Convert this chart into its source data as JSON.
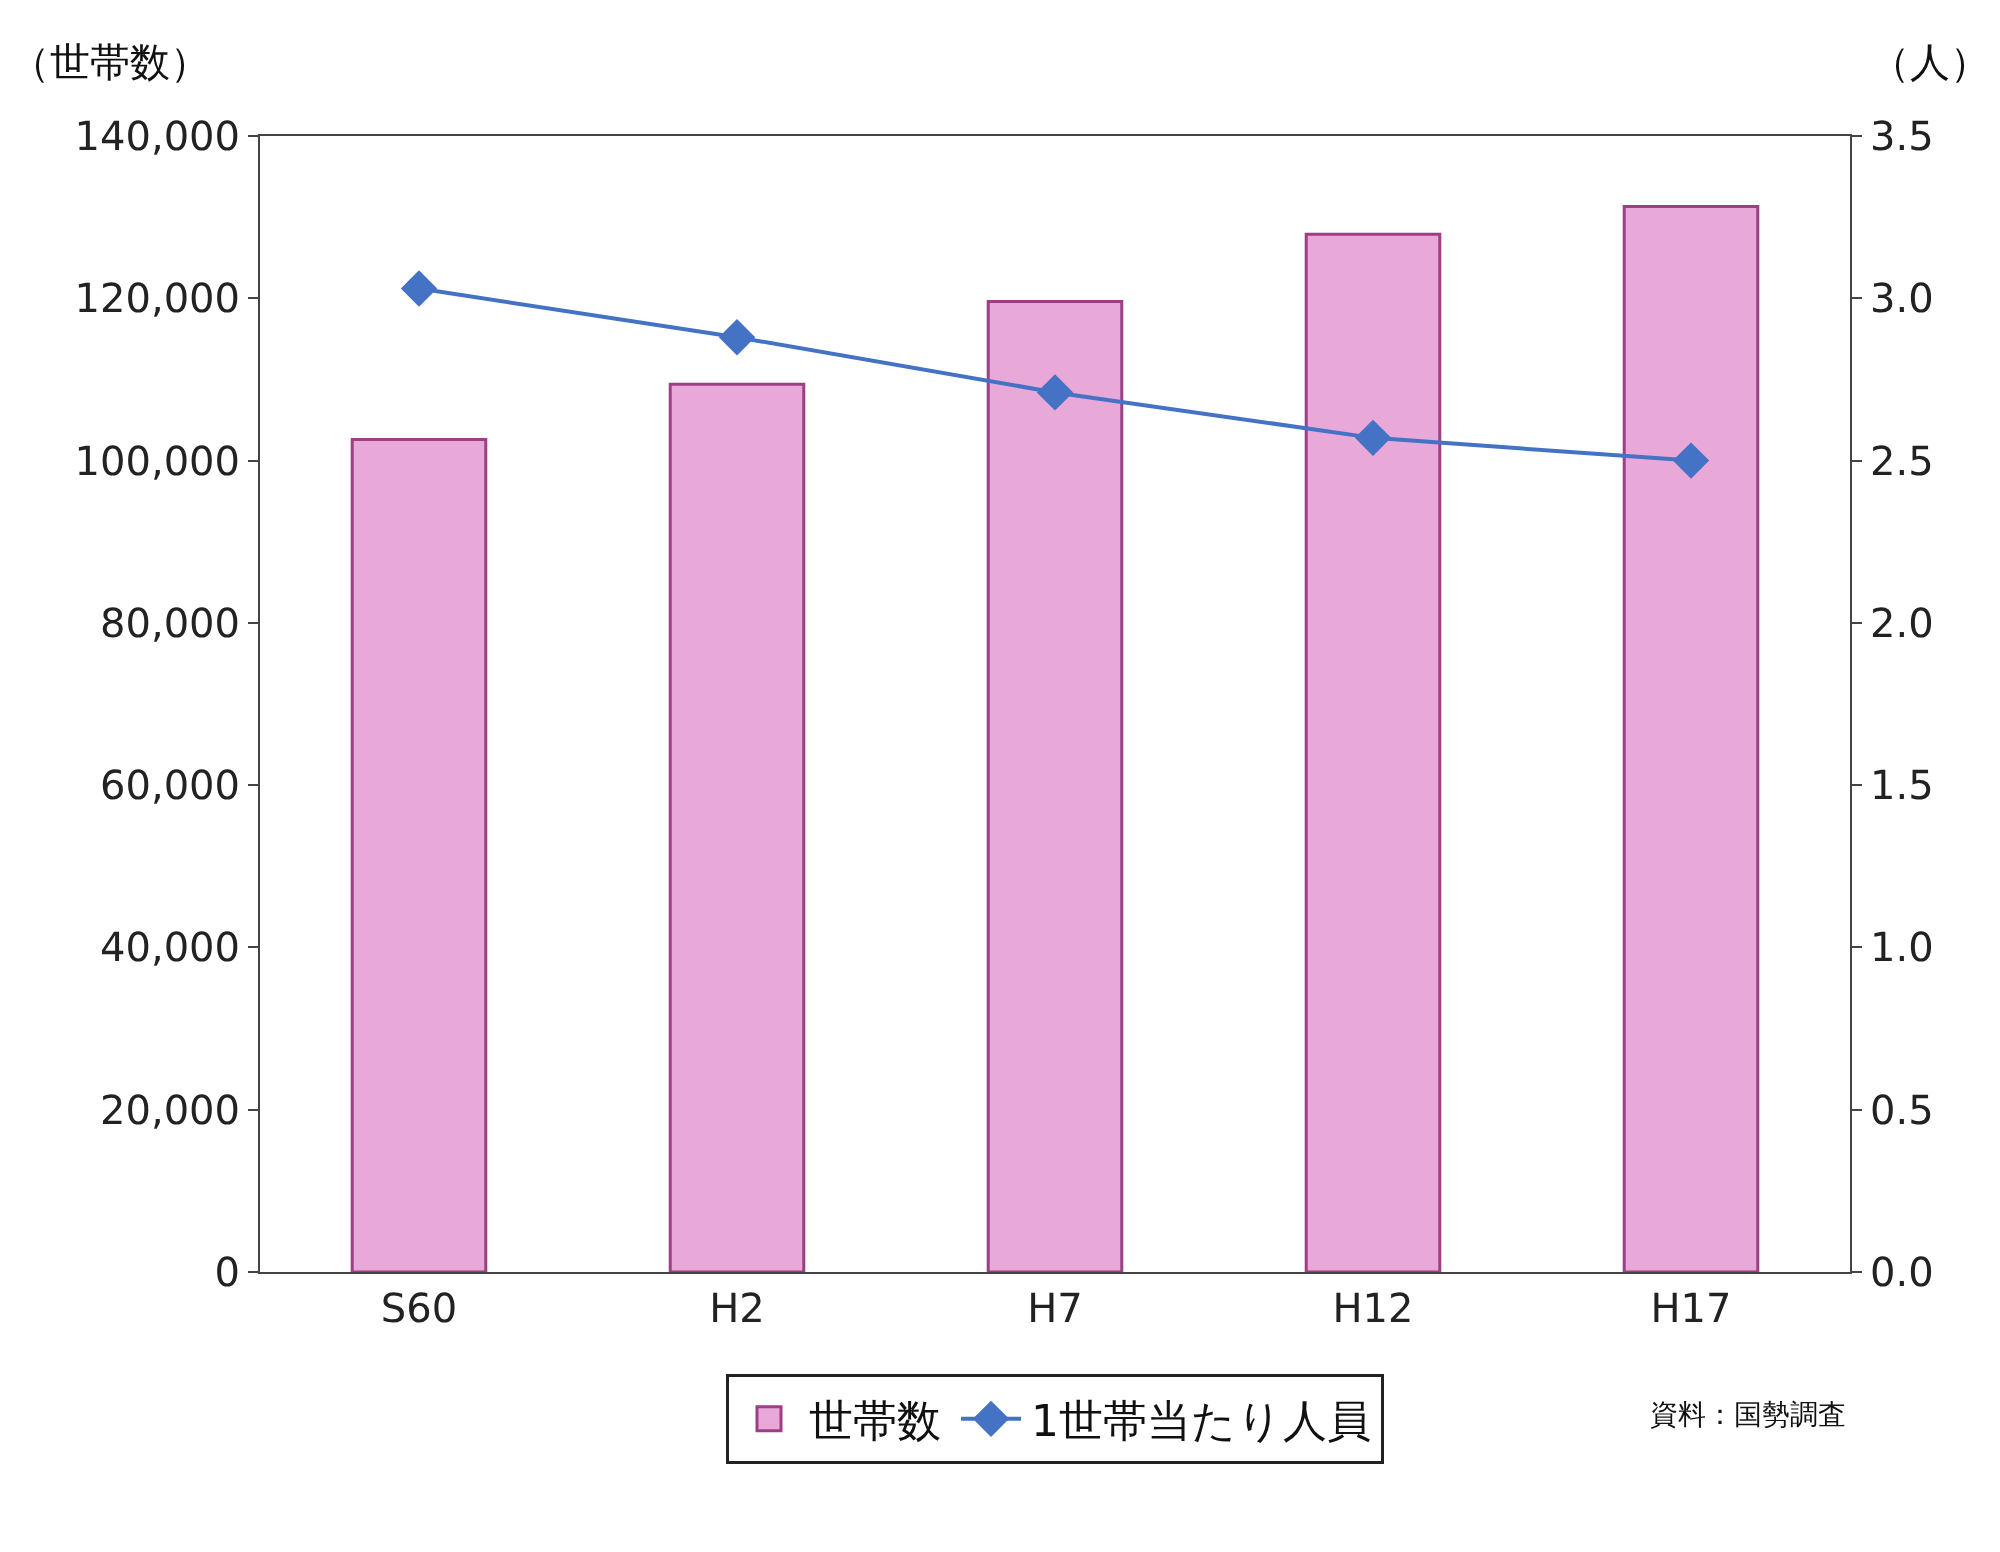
{
  "chart_data": {
    "type": "bar",
    "ylabel": "（世帯数）",
    "y2label": "（人）",
    "categories": [
      "S60",
      "H2",
      "H7",
      "H12",
      "H17"
    ],
    "series": [
      {
        "name": "世帯数",
        "color": "#e8a8d8",
        "values": [
          102600,
          109400,
          119600,
          127900,
          131300
        ]
      },
      {
        "name": "1世帯当たり人員",
        "type": "line",
        "axis": "y2",
        "color": "#4472c4",
        "marker": "diamond",
        "values": [
          3.03,
          2.88,
          2.71,
          2.57,
          2.5
        ]
      }
    ],
    "ylim": [
      0,
      140000
    ],
    "yticks": [
      {
        "value": 0,
        "label": "0"
      },
      {
        "value": 20000,
        "label": "20,000"
      },
      {
        "value": 40000,
        "label": "40,000"
      },
      {
        "value": 60000,
        "label": "60,000"
      },
      {
        "value": 80000,
        "label": "80,000"
      },
      {
        "value": 100000,
        "label": "100,000"
      },
      {
        "value": 120000,
        "label": "120,000"
      },
      {
        "value": 140000,
        "label": "140,000"
      }
    ],
    "y2lim": [
      0,
      3.5
    ],
    "y2ticks": [
      {
        "value": 0,
        "label": "0.0"
      },
      {
        "value": 0.5,
        "label": "0.5"
      },
      {
        "value": 1,
        "label": "1.0"
      },
      {
        "value": 1.5,
        "label": "1.5"
      },
      {
        "value": 2,
        "label": "2.0"
      },
      {
        "value": 2.5,
        "label": "2.5"
      },
      {
        "value": 3,
        "label": "3.0"
      },
      {
        "value": 3.5,
        "label": "3.5"
      }
    ],
    "legend": "bottom",
    "annotations": [
      "資料：国勢調査"
    ]
  }
}
